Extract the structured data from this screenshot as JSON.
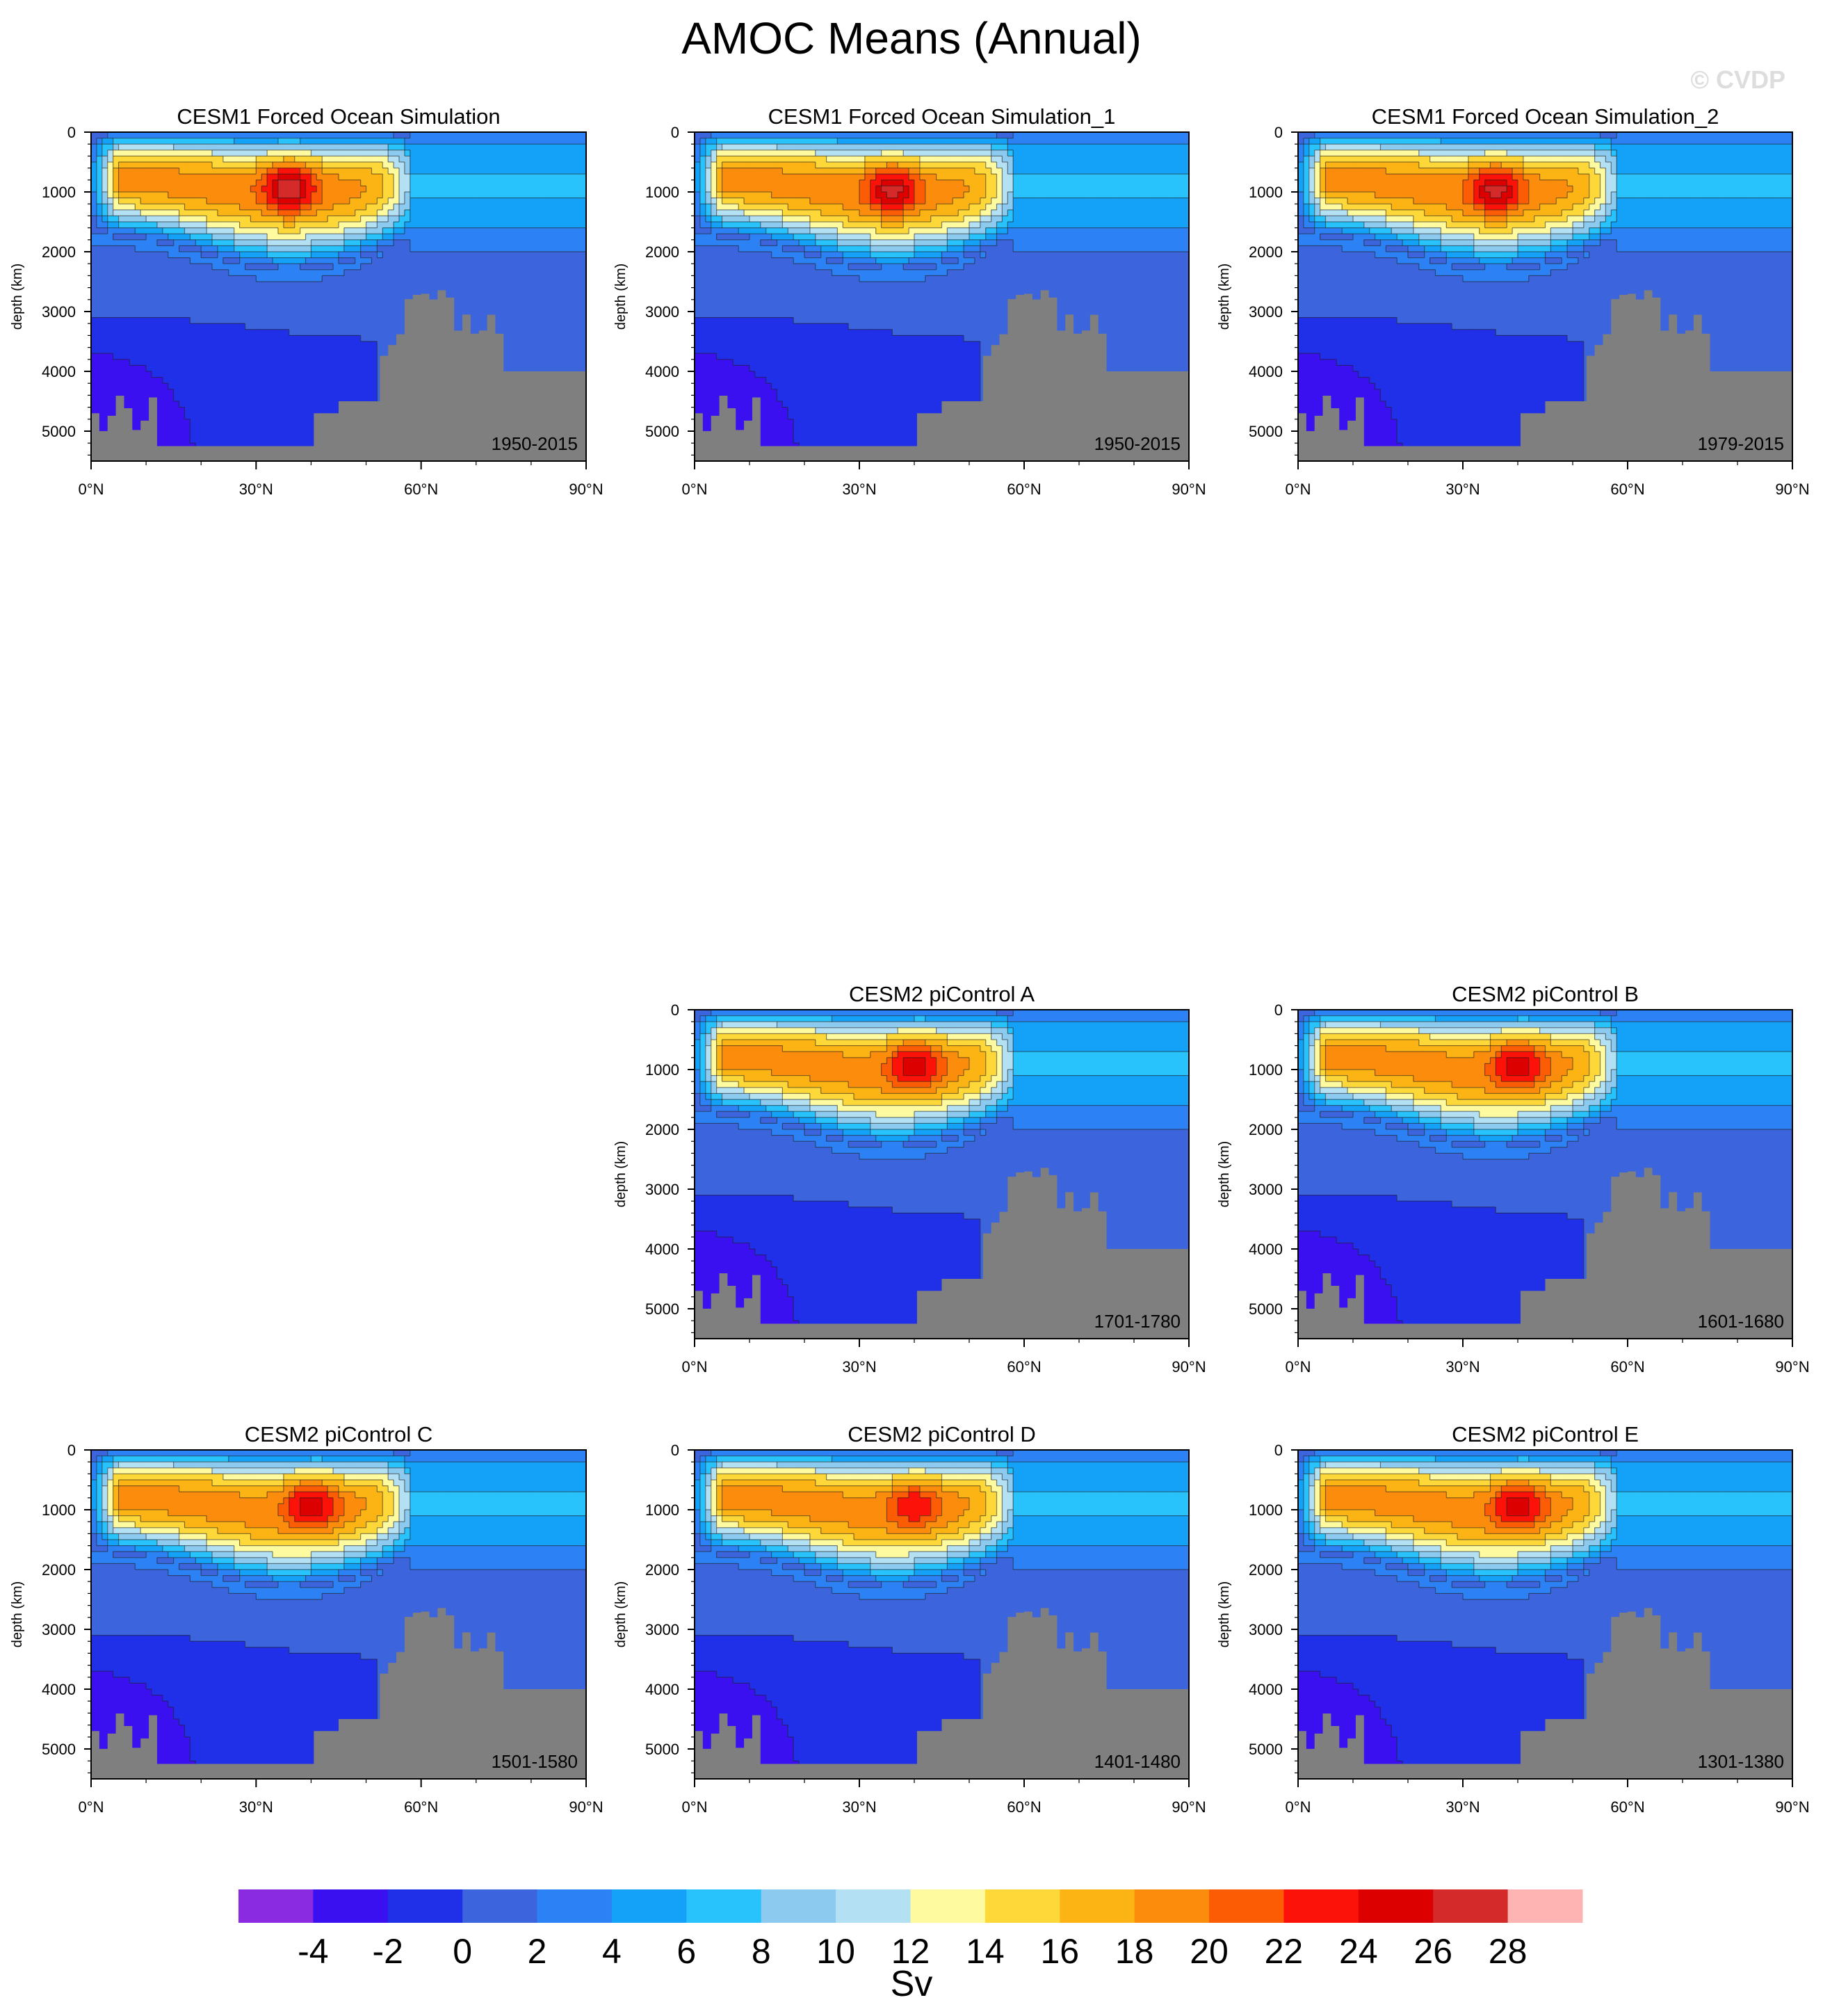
{
  "page": {
    "title": "AMOC Means (Annual)",
    "credit": "© CVDP"
  },
  "colors": {
    "levels": [
      "#8a2be2",
      "#3a10f0",
      "#2030e8",
      "#3c64dc",
      "#2c82f4",
      "#14a2f8",
      "#28c2fc",
      "#8ccaf0",
      "#b4e0f4",
      "#fefaa0",
      "#fed838",
      "#fcb414",
      "#fc8c0c",
      "#fc5c04",
      "#fc1208",
      "#dc0000",
      "#d42a2a",
      "#ffb4b4"
    ],
    "land": "#7f7f7f"
  },
  "colorbar": {
    "labels": [
      "-4",
      "-2",
      "0",
      "2",
      "4",
      "6",
      "8",
      "10",
      "12",
      "14",
      "16",
      "18",
      "20",
      "22",
      "24",
      "26",
      "28"
    ],
    "unit": "Sv"
  },
  "chart_data": [
    {
      "type": "heatmap",
      "title": "CESM1 Forced Ocean Simulation",
      "period": "1950-2015",
      "ylabel": "depth (km)",
      "x_ticks": [
        "0°N",
        "30°N",
        "60°N",
        "90°N"
      ],
      "y_ticks": [
        "0",
        "1000",
        "2000",
        "3000",
        "4000",
        "5000"
      ],
      "xlim": [
        0,
        90
      ],
      "ylim": [
        5500,
        0
      ],
      "max_sv": 28,
      "max_location": {
        "lat": 36,
        "depth": 900
      }
    },
    {
      "type": "heatmap",
      "title": "CESM1 Forced Ocean Simulation_1",
      "period": "1950-2015",
      "ylabel": "depth (km)",
      "x_ticks": [
        "0°N",
        "30°N",
        "60°N",
        "90°N"
      ],
      "y_ticks": [
        "0",
        "1000",
        "2000",
        "3000",
        "4000",
        "5000"
      ],
      "xlim": [
        0,
        90
      ],
      "ylim": [
        5500,
        0
      ],
      "max_sv": 27,
      "max_location": {
        "lat": 36,
        "depth": 950
      }
    },
    {
      "type": "heatmap",
      "title": "CESM1 Forced Ocean Simulation_2",
      "period": "1979-2015",
      "ylabel": "depth (km)",
      "x_ticks": [
        "0°N",
        "30°N",
        "60°N",
        "90°N"
      ],
      "y_ticks": [
        "0",
        "1000",
        "2000",
        "3000",
        "4000",
        "5000"
      ],
      "xlim": [
        0,
        90
      ],
      "ylim": [
        5500,
        0
      ],
      "max_sv": 27,
      "max_location": {
        "lat": 36,
        "depth": 950
      }
    },
    {
      "type": "heatmap",
      "title": "CESM2 piControl A",
      "period": "1701-1780",
      "ylabel": "depth (km)",
      "x_ticks": [
        "0°N",
        "30°N",
        "60°N",
        "90°N"
      ],
      "y_ticks": [
        "0",
        "1000",
        "2000",
        "3000",
        "4000",
        "5000"
      ],
      "xlim": [
        0,
        90
      ],
      "ylim": [
        5500,
        0
      ],
      "max_sv": 26,
      "max_location": {
        "lat": 40,
        "depth": 900
      }
    },
    {
      "type": "heatmap",
      "title": "CESM2 piControl B",
      "period": "1601-1680",
      "ylabel": "depth (km)",
      "x_ticks": [
        "0°N",
        "30°N",
        "60°N",
        "90°N"
      ],
      "y_ticks": [
        "0",
        "1000",
        "2000",
        "3000",
        "4000",
        "5000"
      ],
      "xlim": [
        0,
        90
      ],
      "ylim": [
        5500,
        0
      ],
      "max_sv": 26,
      "max_location": {
        "lat": 40,
        "depth": 900
      }
    },
    {
      "type": "heatmap",
      "title": "CESM2 piControl C",
      "period": "1501-1580",
      "ylabel": "depth (km)",
      "x_ticks": [
        "0°N",
        "30°N",
        "60°N",
        "90°N"
      ],
      "y_ticks": [
        "0",
        "1000",
        "2000",
        "3000",
        "4000",
        "5000"
      ],
      "xlim": [
        0,
        90
      ],
      "ylim": [
        5500,
        0
      ],
      "max_sv": 26,
      "max_location": {
        "lat": 40,
        "depth": 900
      }
    },
    {
      "type": "heatmap",
      "title": "CESM2 piControl D",
      "period": "1401-1480",
      "ylabel": "depth (km)",
      "x_ticks": [
        "0°N",
        "30°N",
        "60°N",
        "90°N"
      ],
      "y_ticks": [
        "0",
        "1000",
        "2000",
        "3000",
        "4000",
        "5000"
      ],
      "xlim": [
        0,
        90
      ],
      "ylim": [
        5500,
        0
      ],
      "max_sv": 24,
      "max_location": {
        "lat": 40,
        "depth": 900
      }
    },
    {
      "type": "heatmap",
      "title": "CESM2 piControl E",
      "period": "1301-1380",
      "ylabel": "depth (km)",
      "x_ticks": [
        "0°N",
        "30°N",
        "60°N",
        "90°N"
      ],
      "y_ticks": [
        "0",
        "1000",
        "2000",
        "3000",
        "4000",
        "5000"
      ],
      "xlim": [
        0,
        90
      ],
      "ylim": [
        5500,
        0
      ],
      "max_sv": 26,
      "max_location": {
        "lat": 40,
        "depth": 900
      }
    }
  ]
}
